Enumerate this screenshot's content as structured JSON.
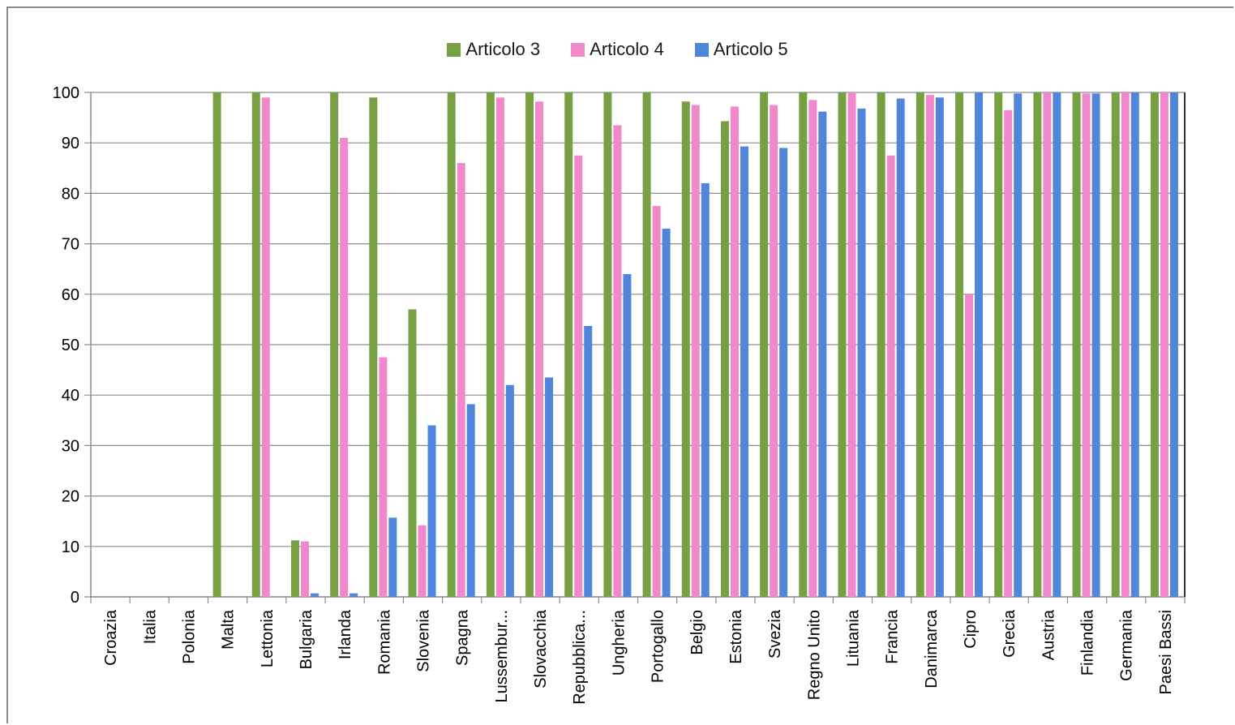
{
  "chart_data": {
    "type": "bar",
    "title": "",
    "xlabel": "",
    "ylabel": "",
    "ylim": [
      0,
      100
    ],
    "yticks": [
      0,
      10,
      20,
      30,
      40,
      50,
      60,
      70,
      80,
      90,
      100
    ],
    "grid": true,
    "legend_position": "top",
    "categories": [
      "Croazia",
      "Italia",
      "Polonia",
      "Malta",
      "Lettonia",
      "Bulgaria",
      "Irlanda",
      "Romania",
      "Slovenia",
      "Spagna",
      "Lussembur...",
      "Slovacchia",
      "Repubblica...",
      "Ungheria",
      "Portogallo",
      "Belgio",
      "Estonia",
      "Svezia",
      "Regno Unito",
      "Lituania",
      "Francia",
      "Danimarca",
      "Cipro",
      "Grecia",
      "Austria",
      "Finlandia",
      "Germania",
      "Paesi Bassi"
    ],
    "series": [
      {
        "name": "Articolo 3",
        "color": "#77a043",
        "values": [
          0,
          0,
          0,
          100,
          100,
          11.2,
          100,
          99,
          57,
          100,
          100,
          100,
          100,
          100,
          100,
          98.2,
          94.3,
          100,
          100,
          100,
          100,
          100,
          100,
          100,
          100,
          100,
          100,
          100
        ]
      },
      {
        "name": "Articolo 4",
        "color": "#f288cc",
        "values": [
          0,
          0,
          0,
          0,
          99,
          11,
          91,
          47.5,
          14.2,
          86,
          99,
          98.2,
          87.5,
          93.5,
          77.5,
          97.5,
          97.2,
          97.5,
          98.5,
          100,
          87.5,
          99.5,
          60,
          96.5,
          100,
          99.8,
          100,
          100
        ]
      },
      {
        "name": "Articolo 5",
        "color": "#4f86d9",
        "values": [
          0,
          0,
          0,
          0,
          0,
          0.7,
          0.7,
          15.7,
          34,
          38.2,
          42,
          43.5,
          53.7,
          64,
          73,
          82,
          89.3,
          89,
          96.2,
          96.8,
          98.8,
          99,
          100,
          99.8,
          100,
          99.8,
          100,
          100
        ]
      }
    ]
  }
}
